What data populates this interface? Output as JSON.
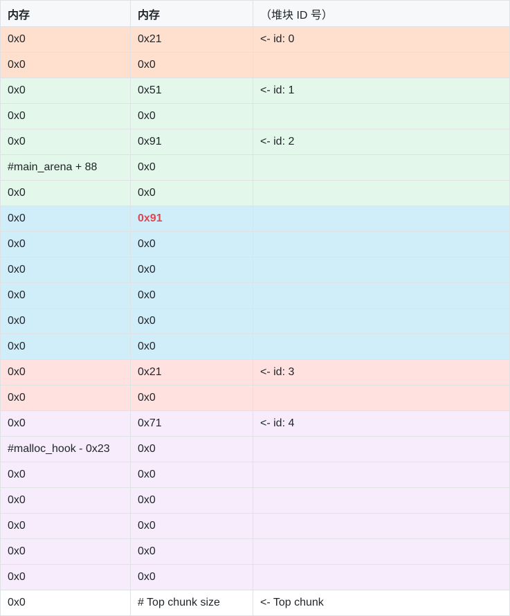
{
  "headers": [
    "内存",
    "内存",
    "（堆块 ID 号）"
  ],
  "rows": [
    {
      "group": "orange",
      "c1": "0x0",
      "c2": "0x21",
      "c3": "<- id: 0",
      "hl": false
    },
    {
      "group": "orange",
      "c1": "0x0",
      "c2": "0x0",
      "c3": "",
      "hl": false
    },
    {
      "group": "green",
      "c1": "0x0",
      "c2": "0x51",
      "c3": "<- id: 1",
      "hl": false
    },
    {
      "group": "green",
      "c1": "0x0",
      "c2": "0x0",
      "c3": "",
      "hl": false
    },
    {
      "group": "green",
      "c1": "0x0",
      "c2": "0x91",
      "c3": "<- id: 2",
      "hl": false
    },
    {
      "group": "green",
      "c1": "#main_arena + 88",
      "c2": "0x0",
      "c3": "",
      "hl": false
    },
    {
      "group": "green",
      "c1": "0x0",
      "c2": "0x0",
      "c3": "",
      "hl": false
    },
    {
      "group": "blue",
      "c1": "0x0",
      "c2": "0x91",
      "c3": "",
      "hl": true
    },
    {
      "group": "blue",
      "c1": "0x0",
      "c2": "0x0",
      "c3": "",
      "hl": false
    },
    {
      "group": "blue",
      "c1": "0x0",
      "c2": "0x0",
      "c3": "",
      "hl": false
    },
    {
      "group": "blue",
      "c1": "0x0",
      "c2": "0x0",
      "c3": "",
      "hl": false
    },
    {
      "group": "blue",
      "c1": "0x0",
      "c2": "0x0",
      "c3": "",
      "hl": false
    },
    {
      "group": "blue",
      "c1": "0x0",
      "c2": "0x0",
      "c3": "",
      "hl": false
    },
    {
      "group": "pink",
      "c1": "0x0",
      "c2": "0x21",
      "c3": "<- id: 3",
      "hl": false
    },
    {
      "group": "pink",
      "c1": "0x0",
      "c2": "0x0",
      "c3": "",
      "hl": false
    },
    {
      "group": "purple",
      "c1": "0x0",
      "c2": "0x71",
      "c3": "<- id: 4",
      "hl": false
    },
    {
      "group": "purple",
      "c1": "#malloc_hook - 0x23",
      "c2": "0x0",
      "c3": "",
      "hl": false
    },
    {
      "group": "purple",
      "c1": "0x0",
      "c2": "0x0",
      "c3": "",
      "hl": false
    },
    {
      "group": "purple",
      "c1": "0x0",
      "c2": "0x0",
      "c3": "",
      "hl": false
    },
    {
      "group": "purple",
      "c1": "0x0",
      "c2": "0x0",
      "c3": "",
      "hl": false
    },
    {
      "group": "purple",
      "c1": "0x0",
      "c2": "0x0",
      "c3": "",
      "hl": false
    },
    {
      "group": "purple",
      "c1": "0x0",
      "c2": "0x0",
      "c3": "",
      "hl": false
    },
    {
      "group": "white",
      "c1": "0x0",
      "c2": "# Top chunk size",
      "c3": "<- Top chunk",
      "hl": false
    }
  ],
  "colors": {
    "orange": "#ffdfce",
    "green": "#e3f8ea",
    "blue": "#d0eef9",
    "pink": "#ffe1e0",
    "purple": "#f6ecfc",
    "highlight_text": "#e0464d"
  }
}
